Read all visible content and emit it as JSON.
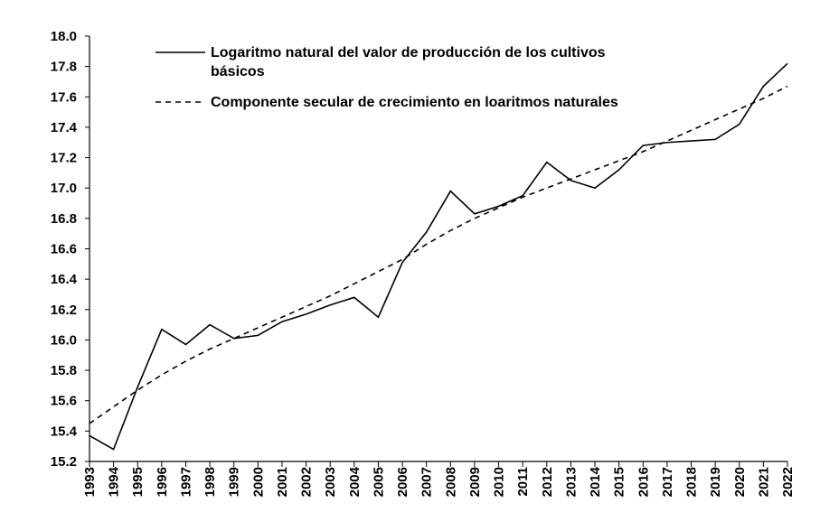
{
  "chart_data": {
    "type": "line",
    "x": [
      "1993",
      "1994",
      "1995",
      "1996",
      "1997",
      "1998",
      "1999",
      "2000",
      "2001",
      "2002",
      "2003",
      "2004",
      "2005",
      "2006",
      "2007",
      "2008",
      "2009",
      "2010",
      "2011",
      "2012",
      "2013",
      "2014",
      "2015",
      "2016",
      "2017",
      "2018",
      "2019",
      "2020",
      "2021",
      "2022"
    ],
    "series": [
      {
        "name": "Logaritmo natural del valor de producción de los cultivos básicos",
        "legend_lines": [
          "Logaritmo natural del valor de producción de los cultivos",
          "básicos"
        ],
        "style": "solid",
        "color": "#000000",
        "values": [
          15.37,
          15.28,
          15.69,
          16.07,
          15.97,
          16.1,
          16.01,
          16.03,
          16.12,
          16.17,
          16.23,
          16.28,
          16.15,
          16.51,
          16.71,
          16.98,
          16.83,
          16.88,
          16.95,
          17.17,
          17.05,
          17.0,
          17.12,
          17.28,
          17.3,
          17.31,
          17.32,
          17.42,
          17.67,
          17.82
        ]
      },
      {
        "name": "Componente secular de crecimiento en loaritmos naturales",
        "legend_lines": [
          "Componente secular de crecimiento en loaritmos naturales"
        ],
        "style": "dashed",
        "color": "#000000",
        "values": [
          15.45,
          15.56,
          15.67,
          15.77,
          15.86,
          15.94,
          16.01,
          16.08,
          16.15,
          16.22,
          16.29,
          16.37,
          16.45,
          16.53,
          16.63,
          16.72,
          16.8,
          16.87,
          16.94,
          17.0,
          17.06,
          17.12,
          17.18,
          17.24,
          17.31,
          17.38,
          17.45,
          17.52,
          17.59,
          17.67
        ]
      }
    ],
    "ylim": [
      15.2,
      18.0
    ],
    "yticks": [
      "15.2",
      "15.4",
      "15.6",
      "15.8",
      "16.0",
      "16.2",
      "16.4",
      "16.6",
      "16.8",
      "17.0",
      "17.2",
      "17.4",
      "17.6",
      "17.8",
      "18.0"
    ],
    "grid": false,
    "legend_position": "top",
    "title": "",
    "xlabel": "",
    "ylabel": ""
  }
}
